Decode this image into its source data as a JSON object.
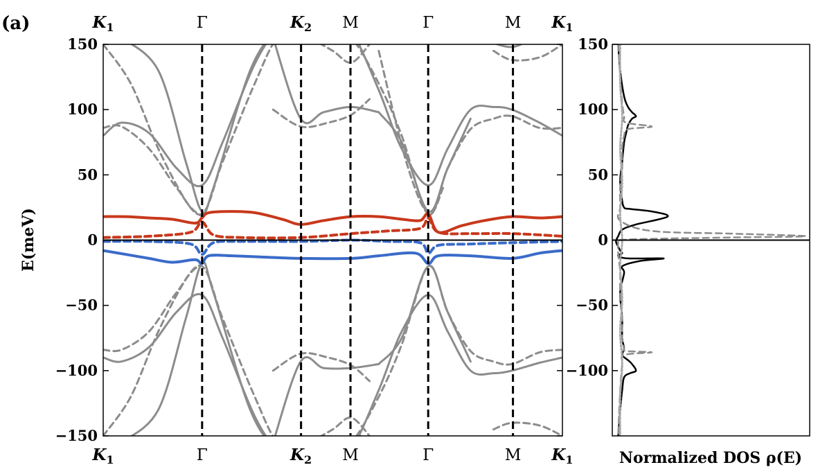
{
  "panel_label": "(a)",
  "chart_data": [
    {
      "type": "line",
      "ylabel": "E(meV)",
      "ylim": [
        -150,
        150
      ],
      "yticks": [
        {
          "value": 150,
          "label": "150"
        },
        {
          "value": 100,
          "label": "100"
        },
        {
          "value": 50,
          "label": "50"
        },
        {
          "value": 0,
          "label": "0"
        },
        {
          "value": -50,
          "label": "−50"
        },
        {
          "value": -100,
          "label": "−100"
        },
        {
          "value": -150,
          "label": "−150"
        }
      ],
      "kpath": [
        {
          "label": "K",
          "sub": "1",
          "pos": 0.0,
          "italic": true
        },
        {
          "label": "Γ",
          "sub": "",
          "pos": 0.2154,
          "italic": false
        },
        {
          "label": "K",
          "sub": "2",
          "pos": 0.4308,
          "italic": true
        },
        {
          "label": "M",
          "sub": "",
          "pos": 0.5385,
          "italic": false
        },
        {
          "label": "Γ",
          "sub": "",
          "pos": 0.7077,
          "italic": false
        },
        {
          "label": "M",
          "sub": "",
          "pos": 0.8923,
          "italic": false
        },
        {
          "label": "K",
          "sub": "1",
          "pos": 1.0,
          "italic": true
        }
      ],
      "colors": {
        "red": "#c8381c",
        "blue": "#3a6bc9",
        "gray": "#8c8c8c"
      },
      "series": [
        {
          "color": "red",
          "style": "solid",
          "x": [
            0,
            0.05,
            0.1,
            0.15,
            0.2,
            0.215,
            0.23,
            0.28,
            0.33,
            0.39,
            0.43,
            0.48,
            0.54,
            0.6,
            0.65,
            0.69,
            0.708,
            0.73,
            0.78,
            0.83,
            0.89,
            0.95,
            1.0
          ],
          "y": [
            18,
            18,
            17,
            16,
            13,
            17,
            21,
            22,
            21,
            16,
            12,
            15,
            18,
            18,
            16,
            15,
            20,
            6,
            11,
            15,
            18,
            17,
            18
          ]
        },
        {
          "color": "red",
          "style": "dashed",
          "x": [
            0,
            0.1,
            0.19,
            0.215,
            0.24,
            0.3,
            0.43,
            0.54,
            0.62,
            0.69,
            0.708,
            0.73,
            0.8,
            0.89,
            1.0
          ],
          "y": [
            2,
            3,
            6,
            14,
            4,
            2,
            2,
            5,
            7,
            9,
            17,
            6,
            5,
            5,
            3
          ]
        },
        {
          "color": "blue",
          "style": "solid",
          "x": [
            0,
            0.05,
            0.1,
            0.15,
            0.2,
            0.215,
            0.23,
            0.28,
            0.35,
            0.43,
            0.54,
            0.6,
            0.68,
            0.708,
            0.73,
            0.8,
            0.89,
            0.95,
            1.0
          ],
          "y": [
            -8,
            -11,
            -14,
            -17,
            -15,
            -18,
            -12,
            -12,
            -13,
            -14,
            -14,
            -12,
            -10,
            -18,
            -12,
            -12,
            -14,
            -10,
            -8
          ]
        },
        {
          "color": "blue",
          "style": "dashed",
          "x": [
            0,
            0.1,
            0.19,
            0.215,
            0.24,
            0.3,
            0.43,
            0.54,
            0.62,
            0.69,
            0.708,
            0.73,
            0.8,
            0.89,
            1.0
          ],
          "y": [
            -1,
            -1,
            -3,
            -11,
            -2,
            -1,
            -1,
            0,
            -1,
            -2,
            -10,
            -4,
            -3,
            -2,
            -1
          ]
        },
        {
          "color": "gray",
          "style": "solid",
          "x": [
            0,
            0.04,
            0.1,
            0.16,
            0.215,
            0.26,
            0.33,
            0.38,
            0.43,
            0.49,
            0.54,
            0.6,
            0.65,
            0.708,
            0.75,
            0.8,
            0.85,
            0.89,
            0.95,
            1.0
          ],
          "y": [
            80,
            90,
            82,
            55,
            42,
            75,
            135,
            160,
            160,
            165,
            160,
            115,
            70,
            42,
            70,
            100,
            102,
            100,
            90,
            80
          ]
        },
        {
          "color": "gray",
          "style": "solid",
          "x": [
            0.37,
            0.43,
            0.48,
            0.54,
            0.6
          ],
          "y": [
            155,
            93,
            98,
            102,
            98
          ]
        },
        {
          "color": "gray",
          "style": "solid",
          "x": [
            0.6,
            0.65,
            0.708,
            0.75,
            0.8
          ],
          "y": [
            98,
            75,
            22,
            55,
            93
          ]
        },
        {
          "color": "gray",
          "style": "solid",
          "x": [
            0.04,
            0.12,
            0.18,
            0.215,
            0.24,
            0.32,
            0.38,
            0.43,
            0.52,
            0.56
          ],
          "y": [
            155,
            130,
            60,
            22,
            40,
            130,
            160,
            160,
            160,
            150
          ]
        },
        {
          "color": "gray",
          "style": "solid",
          "x": [
            0.77,
            0.82,
            0.89,
            0.95,
            1.0
          ],
          "y": [
            160,
            155,
            148,
            158,
            165
          ]
        },
        {
          "color": "gray",
          "style": "dashed",
          "x": [
            0,
            0.04,
            0.1,
            0.16,
            0.215,
            0.26,
            0.33,
            0.38,
            0.43,
            0.49,
            0.54,
            0.6,
            0.65,
            0.708,
            0.75,
            0.8,
            0.85,
            0.89,
            0.95,
            1.0
          ],
          "y": [
            86,
            87,
            70,
            40,
            20,
            60,
            120,
            155,
            155,
            158,
            155,
            120,
            80,
            20,
            55,
            85,
            93,
            95,
            86,
            86
          ]
        },
        {
          "color": "gray",
          "style": "dashed",
          "x": [
            0,
            0.06,
            0.12,
            0.18,
            0.215
          ],
          "y": [
            150,
            120,
            70,
            30,
            18
          ]
        },
        {
          "color": "gray",
          "style": "dashed",
          "x": [
            0.37,
            0.43,
            0.49,
            0.54,
            0.58
          ],
          "y": [
            100,
            87,
            90,
            96,
            108
          ]
        },
        {
          "color": "gray",
          "style": "dashed",
          "x": [
            0.45,
            0.5,
            0.54,
            0.58
          ],
          "y": [
            155,
            145,
            136,
            150
          ]
        },
        {
          "color": "gray",
          "style": "dashed",
          "x": [
            0.6,
            0.66,
            0.708,
            0.74
          ],
          "y": [
            145,
            60,
            20,
            40
          ]
        },
        {
          "color": "gray",
          "style": "dashed",
          "x": [
            0.85,
            0.89,
            0.95,
            1.0
          ],
          "y": [
            145,
            138,
            140,
            150
          ]
        },
        {
          "color": "gray",
          "style": "solid",
          "x": [
            0,
            0.04,
            0.1,
            0.16,
            0.215,
            0.26,
            0.33,
            0.38,
            0.43,
            0.49,
            0.54,
            0.6,
            0.65,
            0.708,
            0.75,
            0.8,
            0.85,
            0.89,
            0.95,
            1.0
          ],
          "y": [
            -90,
            -93,
            -82,
            -55,
            -42,
            -75,
            -135,
            -160,
            -160,
            -165,
            -160,
            -115,
            -70,
            -42,
            -70,
            -100,
            -102,
            -100,
            -94,
            -90
          ]
        },
        {
          "color": "gray",
          "style": "solid",
          "x": [
            0.37,
            0.43,
            0.48,
            0.54,
            0.6
          ],
          "y": [
            -155,
            -93,
            -98,
            -98,
            -95
          ]
        },
        {
          "color": "gray",
          "style": "solid",
          "x": [
            0.6,
            0.65,
            0.708,
            0.75,
            0.8
          ],
          "y": [
            -95,
            -75,
            -20,
            -55,
            -93
          ]
        },
        {
          "color": "gray",
          "style": "solid",
          "x": [
            0.04,
            0.12,
            0.18,
            0.215,
            0.24,
            0.32,
            0.38,
            0.43,
            0.52,
            0.56
          ],
          "y": [
            -155,
            -130,
            -60,
            -18,
            -40,
            -130,
            -160,
            -160,
            -160,
            -150
          ]
        },
        {
          "color": "gray",
          "style": "dashed",
          "x": [
            0,
            0.04,
            0.1,
            0.16,
            0.215,
            0.26,
            0.33,
            0.38,
            0.43,
            0.49,
            0.54,
            0.6,
            0.65,
            0.708,
            0.75,
            0.8,
            0.85,
            0.89,
            0.95,
            1.0
          ],
          "y": [
            -84,
            -84,
            -70,
            -40,
            -20,
            -60,
            -120,
            -155,
            -155,
            -158,
            -155,
            -120,
            -80,
            -20,
            -55,
            -85,
            -93,
            -95,
            -86,
            -84
          ]
        },
        {
          "color": "gray",
          "style": "dashed",
          "x": [
            0,
            0.06,
            0.12,
            0.18,
            0.215
          ],
          "y": [
            -150,
            -120,
            -70,
            -30,
            -18
          ]
        },
        {
          "color": "gray",
          "style": "dashed",
          "x": [
            0.37,
            0.43,
            0.49,
            0.54,
            0.58
          ],
          "y": [
            -100,
            -87,
            -90,
            -96,
            -108
          ]
        },
        {
          "color": "gray",
          "style": "dashed",
          "x": [
            0.45,
            0.5,
            0.54,
            0.58
          ],
          "y": [
            -155,
            -145,
            -136,
            -150
          ]
        },
        {
          "color": "gray",
          "style": "dashed",
          "x": [
            0.85,
            0.89,
            0.95,
            1.0
          ],
          "y": [
            -145,
            -140,
            -142,
            -150
          ]
        }
      ]
    },
    {
      "type": "line",
      "xlabel": "Normalized DOS ρ(E)",
      "ylim": [
        -150,
        150
      ],
      "yticks": [
        {
          "value": 150,
          "label": "150"
        },
        {
          "value": 100,
          "label": "100"
        },
        {
          "value": 50,
          "label": "50"
        },
        {
          "value": 0,
          "label": "0"
        },
        {
          "value": -50,
          "label": "−50"
        },
        {
          "value": -100,
          "label": "−100"
        }
      ],
      "xlim": [
        0,
        1
      ],
      "series": [
        {
          "color": "#000000",
          "style": "solid",
          "x": [
            0.03,
            0.04,
            0.06,
            0.08,
            0.1,
            0.12,
            0.1,
            0.08,
            0.07,
            0.06,
            0.05,
            0.04,
            0.05,
            0.06,
            0.08,
            0.2,
            0.28,
            0.12,
            0.05,
            0.03,
            0.02,
            0.02,
            0.03,
            0.04,
            0.05,
            0.03,
            0.08,
            0.26,
            0.14,
            0.05,
            0.06,
            0.04,
            0.05,
            0.05,
            0.06,
            0.05,
            0.08,
            0.1,
            0.12,
            0.09,
            0.06,
            0.05,
            0.04,
            0.03
          ],
          "y": [
            150,
            130,
            110,
            102,
            98,
            95,
            93,
            88,
            82,
            75,
            60,
            45,
            30,
            25,
            24,
            22,
            18,
            12,
            8,
            3,
            0,
            -2,
            -5,
            -8,
            -10,
            -12,
            -14,
            -14,
            -16,
            -20,
            -25,
            -40,
            -60,
            -75,
            -83,
            -88,
            -92,
            -95,
            -100,
            -102,
            -105,
            -115,
            -130,
            -150
          ]
        },
        {
          "color": "#8c8c8c",
          "style": "dashed",
          "x": [
            0.03,
            0.04,
            0.05,
            0.06,
            0.07,
            0.2,
            0.08,
            0.06,
            0.05,
            0.05,
            0.04,
            0.04,
            0.04,
            0.2,
            0.6,
            0.98,
            0.6,
            0.2,
            0.04,
            0.03,
            0.03,
            0.04,
            0.04,
            0.05,
            0.05,
            0.06,
            0.07,
            0.2,
            0.06,
            0.05,
            0.04,
            0.03
          ],
          "y": [
            150,
            125,
            105,
            95,
            90,
            87,
            85,
            80,
            70,
            55,
            40,
            25,
            15,
            7,
            5,
            3,
            2,
            1,
            0,
            -2,
            -10,
            -25,
            -40,
            -60,
            -75,
            -83,
            -85,
            -86,
            -88,
            -95,
            -115,
            -150
          ]
        },
        {
          "color": "#aaaaaa",
          "style": "dotted",
          "x": [
            0.04,
            0.04,
            0.05,
            0.04,
            0.05,
            0.04,
            0.05,
            0.04,
            0.05,
            0.04,
            0.05,
            0.04,
            0.04
          ],
          "y": [
            150,
            120,
            95,
            70,
            45,
            20,
            0,
            -20,
            -45,
            -70,
            -95,
            -120,
            -150
          ]
        }
      ]
    }
  ]
}
